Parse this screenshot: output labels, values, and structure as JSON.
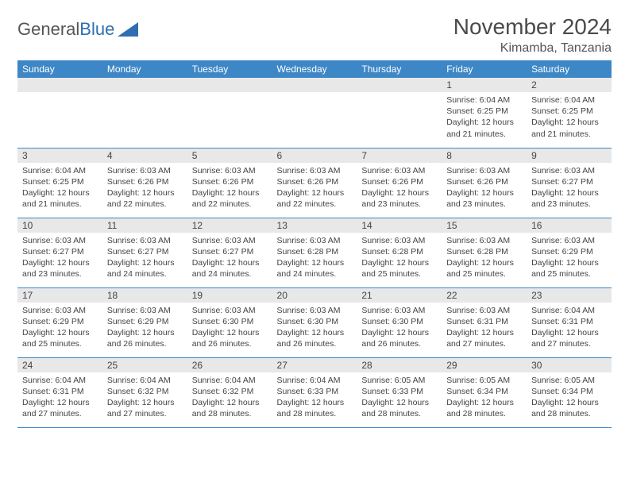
{
  "logo": {
    "text1": "General",
    "text2": "Blue"
  },
  "title": "November 2024",
  "location": "Kimamba, Tanzania",
  "colors": {
    "header_bg": "#3d87c7",
    "header_text": "#ffffff",
    "daybar_bg": "#e8e8e8",
    "border": "#3d87c7",
    "text": "#444444",
    "page_bg": "#ffffff"
  },
  "fonts": {
    "title_pt": 28,
    "location_pt": 16,
    "weekday_pt": 12,
    "daynum_pt": 12,
    "body_pt": 10.5
  },
  "weekdays": [
    "Sunday",
    "Monday",
    "Tuesday",
    "Wednesday",
    "Thursday",
    "Friday",
    "Saturday"
  ],
  "weeks": [
    [
      {
        "num": "",
        "sunrise": "",
        "sunset": "",
        "daylight": ""
      },
      {
        "num": "",
        "sunrise": "",
        "sunset": "",
        "daylight": ""
      },
      {
        "num": "",
        "sunrise": "",
        "sunset": "",
        "daylight": ""
      },
      {
        "num": "",
        "sunrise": "",
        "sunset": "",
        "daylight": ""
      },
      {
        "num": "",
        "sunrise": "",
        "sunset": "",
        "daylight": ""
      },
      {
        "num": "1",
        "sunrise": "Sunrise: 6:04 AM",
        "sunset": "Sunset: 6:25 PM",
        "daylight": "Daylight: 12 hours and 21 minutes."
      },
      {
        "num": "2",
        "sunrise": "Sunrise: 6:04 AM",
        "sunset": "Sunset: 6:25 PM",
        "daylight": "Daylight: 12 hours and 21 minutes."
      }
    ],
    [
      {
        "num": "3",
        "sunrise": "Sunrise: 6:04 AM",
        "sunset": "Sunset: 6:25 PM",
        "daylight": "Daylight: 12 hours and 21 minutes."
      },
      {
        "num": "4",
        "sunrise": "Sunrise: 6:03 AM",
        "sunset": "Sunset: 6:26 PM",
        "daylight": "Daylight: 12 hours and 22 minutes."
      },
      {
        "num": "5",
        "sunrise": "Sunrise: 6:03 AM",
        "sunset": "Sunset: 6:26 PM",
        "daylight": "Daylight: 12 hours and 22 minutes."
      },
      {
        "num": "6",
        "sunrise": "Sunrise: 6:03 AM",
        "sunset": "Sunset: 6:26 PM",
        "daylight": "Daylight: 12 hours and 22 minutes."
      },
      {
        "num": "7",
        "sunrise": "Sunrise: 6:03 AM",
        "sunset": "Sunset: 6:26 PM",
        "daylight": "Daylight: 12 hours and 23 minutes."
      },
      {
        "num": "8",
        "sunrise": "Sunrise: 6:03 AM",
        "sunset": "Sunset: 6:26 PM",
        "daylight": "Daylight: 12 hours and 23 minutes."
      },
      {
        "num": "9",
        "sunrise": "Sunrise: 6:03 AM",
        "sunset": "Sunset: 6:27 PM",
        "daylight": "Daylight: 12 hours and 23 minutes."
      }
    ],
    [
      {
        "num": "10",
        "sunrise": "Sunrise: 6:03 AM",
        "sunset": "Sunset: 6:27 PM",
        "daylight": "Daylight: 12 hours and 23 minutes."
      },
      {
        "num": "11",
        "sunrise": "Sunrise: 6:03 AM",
        "sunset": "Sunset: 6:27 PM",
        "daylight": "Daylight: 12 hours and 24 minutes."
      },
      {
        "num": "12",
        "sunrise": "Sunrise: 6:03 AM",
        "sunset": "Sunset: 6:27 PM",
        "daylight": "Daylight: 12 hours and 24 minutes."
      },
      {
        "num": "13",
        "sunrise": "Sunrise: 6:03 AM",
        "sunset": "Sunset: 6:28 PM",
        "daylight": "Daylight: 12 hours and 24 minutes."
      },
      {
        "num": "14",
        "sunrise": "Sunrise: 6:03 AM",
        "sunset": "Sunset: 6:28 PM",
        "daylight": "Daylight: 12 hours and 25 minutes."
      },
      {
        "num": "15",
        "sunrise": "Sunrise: 6:03 AM",
        "sunset": "Sunset: 6:28 PM",
        "daylight": "Daylight: 12 hours and 25 minutes."
      },
      {
        "num": "16",
        "sunrise": "Sunrise: 6:03 AM",
        "sunset": "Sunset: 6:29 PM",
        "daylight": "Daylight: 12 hours and 25 minutes."
      }
    ],
    [
      {
        "num": "17",
        "sunrise": "Sunrise: 6:03 AM",
        "sunset": "Sunset: 6:29 PM",
        "daylight": "Daylight: 12 hours and 25 minutes."
      },
      {
        "num": "18",
        "sunrise": "Sunrise: 6:03 AM",
        "sunset": "Sunset: 6:29 PM",
        "daylight": "Daylight: 12 hours and 26 minutes."
      },
      {
        "num": "19",
        "sunrise": "Sunrise: 6:03 AM",
        "sunset": "Sunset: 6:30 PM",
        "daylight": "Daylight: 12 hours and 26 minutes."
      },
      {
        "num": "20",
        "sunrise": "Sunrise: 6:03 AM",
        "sunset": "Sunset: 6:30 PM",
        "daylight": "Daylight: 12 hours and 26 minutes."
      },
      {
        "num": "21",
        "sunrise": "Sunrise: 6:03 AM",
        "sunset": "Sunset: 6:30 PM",
        "daylight": "Daylight: 12 hours and 26 minutes."
      },
      {
        "num": "22",
        "sunrise": "Sunrise: 6:03 AM",
        "sunset": "Sunset: 6:31 PM",
        "daylight": "Daylight: 12 hours and 27 minutes."
      },
      {
        "num": "23",
        "sunrise": "Sunrise: 6:04 AM",
        "sunset": "Sunset: 6:31 PM",
        "daylight": "Daylight: 12 hours and 27 minutes."
      }
    ],
    [
      {
        "num": "24",
        "sunrise": "Sunrise: 6:04 AM",
        "sunset": "Sunset: 6:31 PM",
        "daylight": "Daylight: 12 hours and 27 minutes."
      },
      {
        "num": "25",
        "sunrise": "Sunrise: 6:04 AM",
        "sunset": "Sunset: 6:32 PM",
        "daylight": "Daylight: 12 hours and 27 minutes."
      },
      {
        "num": "26",
        "sunrise": "Sunrise: 6:04 AM",
        "sunset": "Sunset: 6:32 PM",
        "daylight": "Daylight: 12 hours and 28 minutes."
      },
      {
        "num": "27",
        "sunrise": "Sunrise: 6:04 AM",
        "sunset": "Sunset: 6:33 PM",
        "daylight": "Daylight: 12 hours and 28 minutes."
      },
      {
        "num": "28",
        "sunrise": "Sunrise: 6:05 AM",
        "sunset": "Sunset: 6:33 PM",
        "daylight": "Daylight: 12 hours and 28 minutes."
      },
      {
        "num": "29",
        "sunrise": "Sunrise: 6:05 AM",
        "sunset": "Sunset: 6:34 PM",
        "daylight": "Daylight: 12 hours and 28 minutes."
      },
      {
        "num": "30",
        "sunrise": "Sunrise: 6:05 AM",
        "sunset": "Sunset: 6:34 PM",
        "daylight": "Daylight: 12 hours and 28 minutes."
      }
    ]
  ]
}
